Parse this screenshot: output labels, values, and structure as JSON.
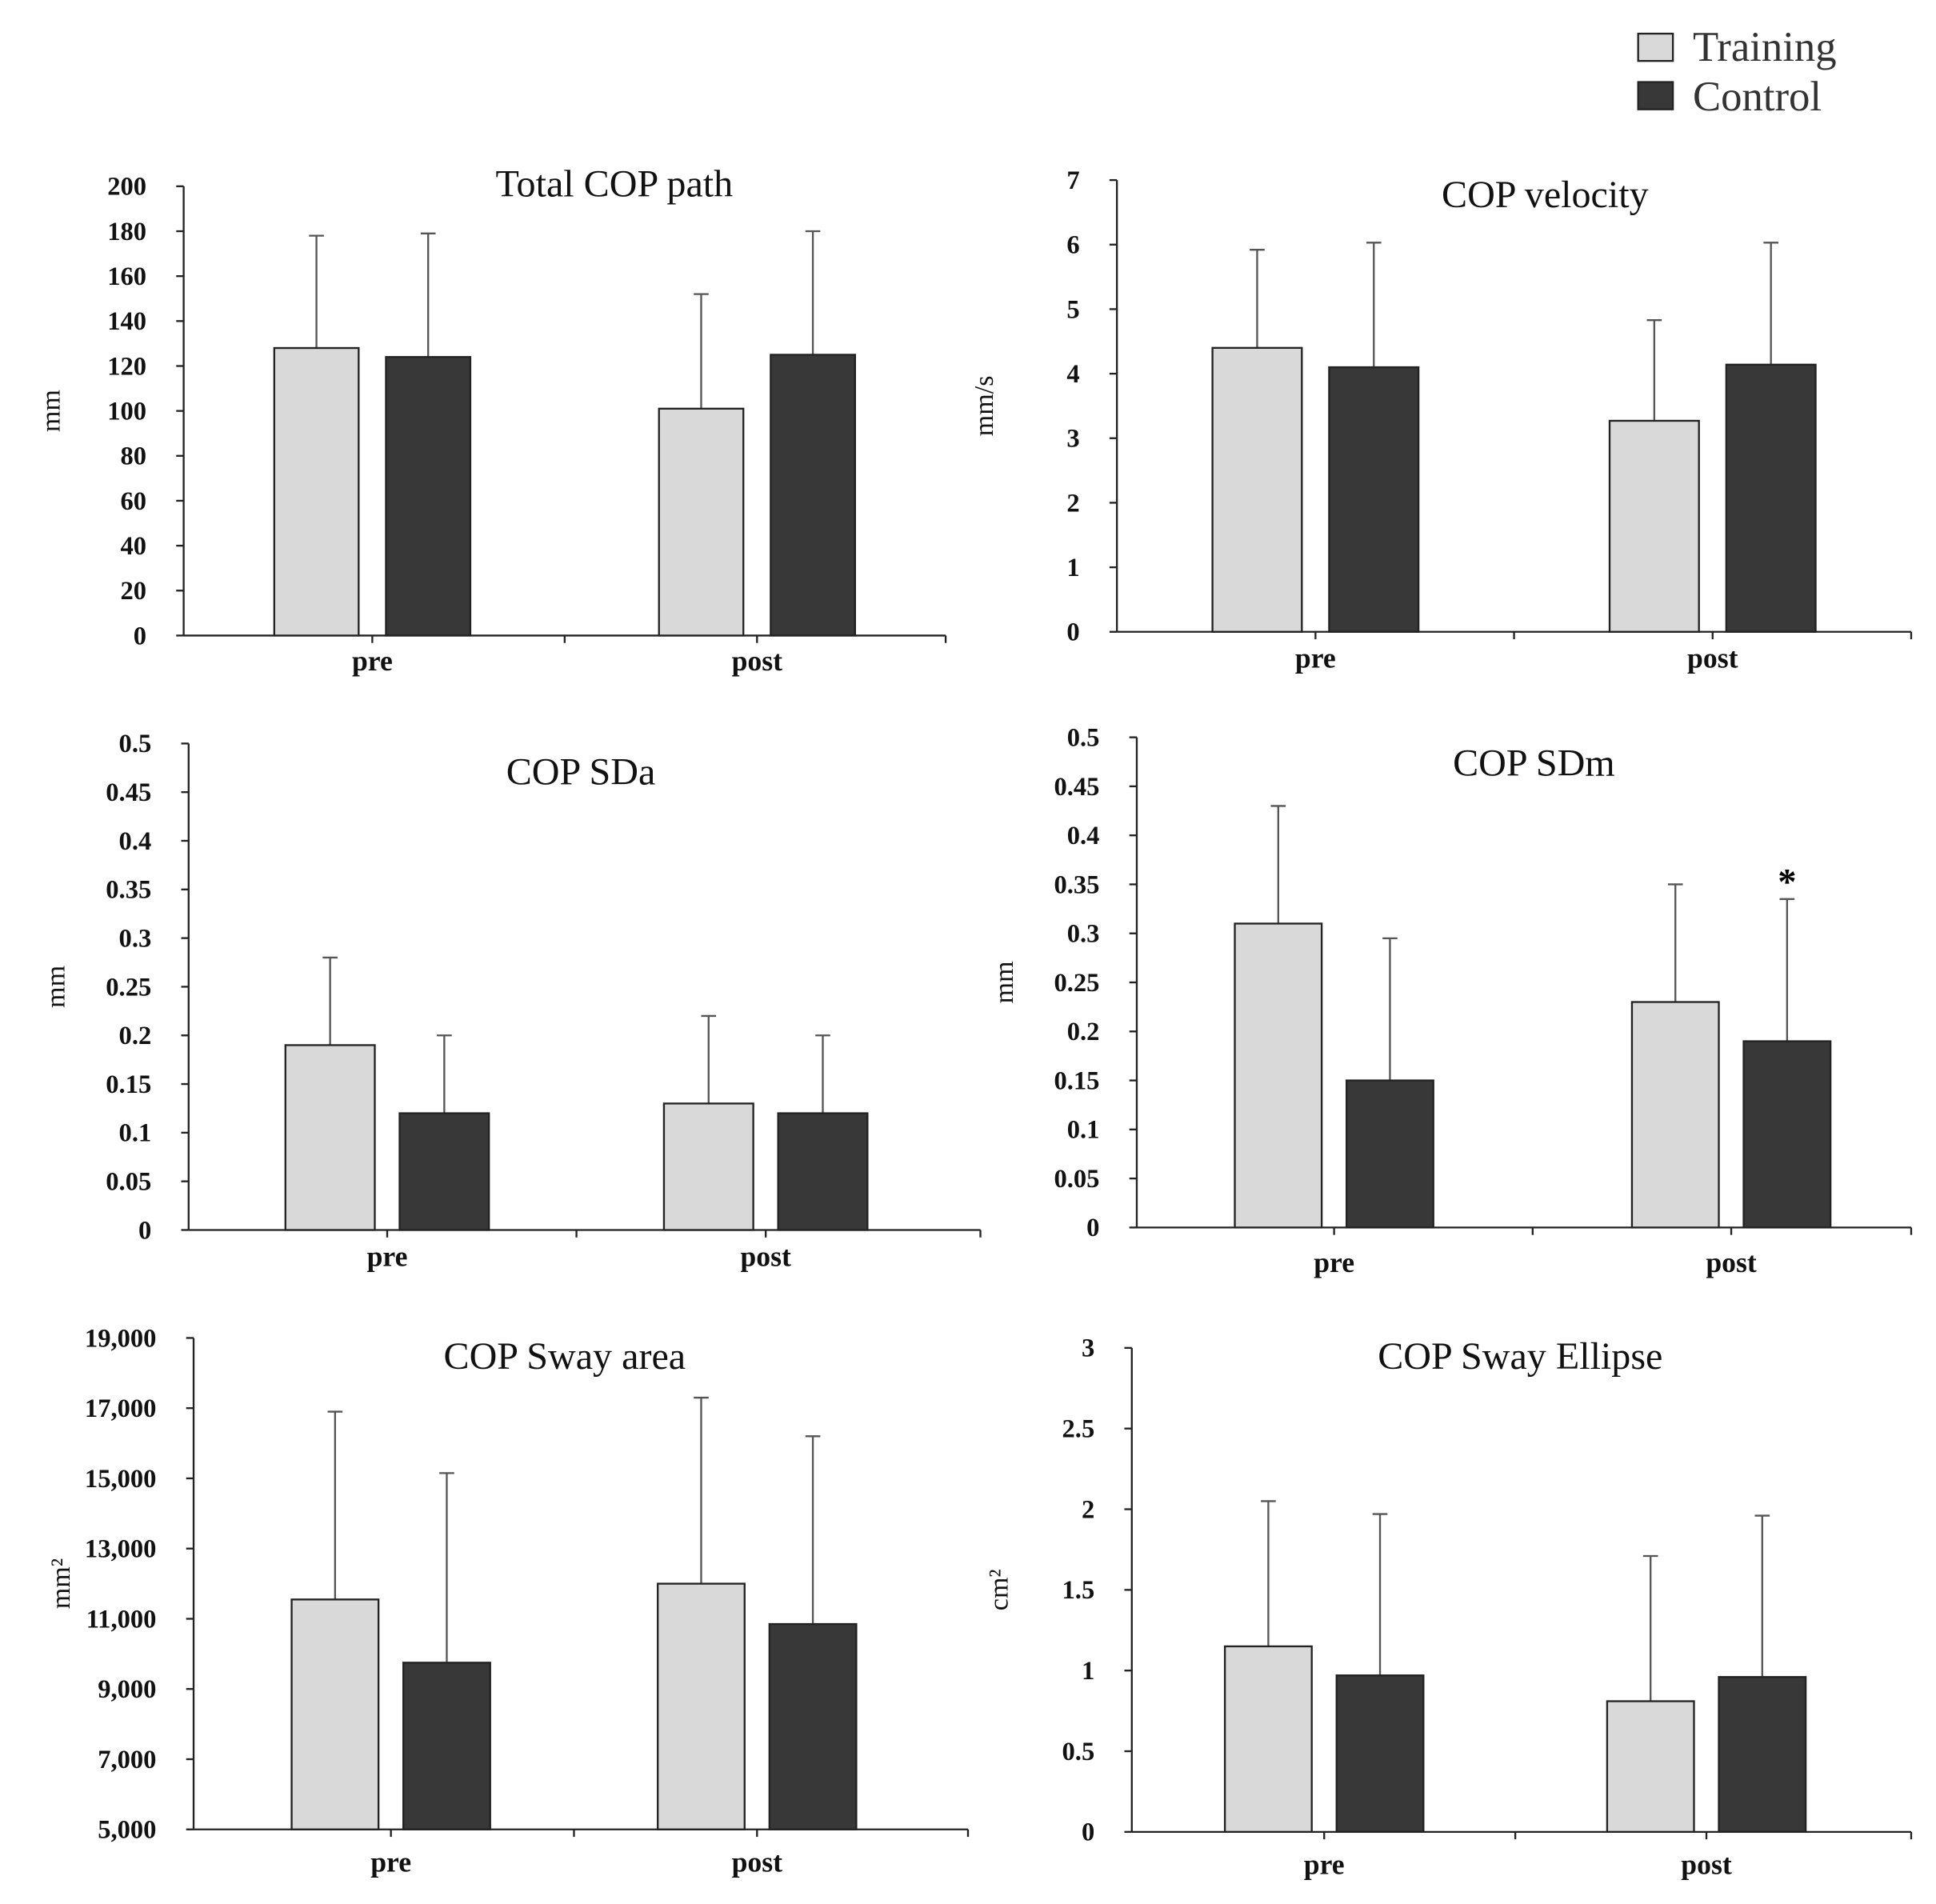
{
  "legend": [
    {
      "label": "Training",
      "color": "#d9d9d9"
    },
    {
      "label": "Control",
      "color": "#383838"
    }
  ],
  "chart_data": [
    {
      "type": "bar",
      "title": "Total COP path",
      "ylabel": "mm",
      "categories": [
        "pre",
        "post"
      ],
      "ylim": [
        0,
        200
      ],
      "ticks": [
        0,
        20,
        40,
        60,
        80,
        100,
        120,
        140,
        160,
        180,
        200
      ],
      "tick_labels": [
        "0",
        "20",
        "40",
        "60",
        "80",
        "100",
        "120",
        "140",
        "160",
        "180",
        "200"
      ],
      "series": [
        {
          "name": "Training",
          "values": [
            128,
            101
          ],
          "error_upper": [
            178,
            152
          ]
        },
        {
          "name": "Control",
          "values": [
            124,
            125
          ],
          "error_upper": [
            179,
            180
          ]
        }
      ]
    },
    {
      "type": "bar",
      "title": "COP velocity",
      "ylabel": "mm/s",
      "categories": [
        "pre",
        "post"
      ],
      "ylim": [
        0,
        7
      ],
      "ticks": [
        0,
        1,
        2,
        3,
        4,
        5,
        6,
        7
      ],
      "tick_labels": [
        "0",
        "1",
        "2",
        "3",
        "4",
        "5",
        "6",
        "7"
      ],
      "series": [
        {
          "name": "Training",
          "values": [
            4.4,
            3.27
          ],
          "error_upper": [
            5.92,
            4.83
          ]
        },
        {
          "name": "Control",
          "values": [
            4.1,
            4.14
          ],
          "error_upper": [
            6.03,
            6.03
          ]
        }
      ]
    },
    {
      "type": "bar",
      "title": "COP SDa",
      "ylabel": "mm",
      "categories": [
        "pre",
        "post"
      ],
      "ylim": [
        0,
        0.5
      ],
      "ticks": [
        0,
        0.05,
        0.1,
        0.15,
        0.2,
        0.25,
        0.3,
        0.35,
        0.4,
        0.45,
        0.5
      ],
      "tick_labels": [
        "0",
        "0.05",
        "0.1",
        "0.15",
        "0.2",
        "0.25",
        "0.3",
        "0.35",
        "0.4",
        "0.45",
        "0.5"
      ],
      "series": [
        {
          "name": "Training",
          "values": [
            0.19,
            0.13
          ],
          "error_upper": [
            0.28,
            0.22
          ]
        },
        {
          "name": "Control",
          "values": [
            0.12,
            0.12
          ],
          "error_upper": [
            0.2,
            0.2
          ]
        }
      ]
    },
    {
      "type": "bar",
      "title": "COP SDm",
      "ylabel": "mm",
      "categories": [
        "pre",
        "post"
      ],
      "ylim": [
        0,
        0.5
      ],
      "ticks": [
        0,
        0.05,
        0.1,
        0.15,
        0.2,
        0.25,
        0.3,
        0.35,
        0.4,
        0.45,
        0.5
      ],
      "tick_labels": [
        "0",
        "0.05",
        "0.1",
        "0.15",
        "0.2",
        "0.25",
        "0.3",
        "0.35",
        "0.4",
        "0.45",
        "0.5"
      ],
      "series": [
        {
          "name": "Training",
          "values": [
            0.31,
            0.23
          ],
          "error_upper": [
            0.43,
            0.35
          ]
        },
        {
          "name": "Control",
          "values": [
            0.15,
            0.19
          ],
          "error_upper": [
            0.295,
            0.335
          ]
        }
      ],
      "annotation": {
        "text": "*",
        "category": "post",
        "series": "Control"
      }
    },
    {
      "type": "bar",
      "title": "COP Sway area",
      "ylabel": "mm²",
      "categories": [
        "pre",
        "post"
      ],
      "ylim": [
        5000,
        19000
      ],
      "ticks": [
        5000,
        7000,
        9000,
        11000,
        13000,
        15000,
        17000,
        19000
      ],
      "tick_labels": [
        "5,000",
        "7,000",
        "9,000",
        "11,000",
        "13,000",
        "15,000",
        "17,000",
        "19,000"
      ],
      "series": [
        {
          "name": "Training",
          "values": [
            11550,
            12000
          ],
          "error_upper": [
            16900,
            17300
          ]
        },
        {
          "name": "Control",
          "values": [
            9750,
            10850
          ],
          "error_upper": [
            15150,
            16200
          ]
        }
      ]
    },
    {
      "type": "bar",
      "title": "COP Sway Ellipse",
      "ylabel": "cm²",
      "categories": [
        "pre",
        "post"
      ],
      "ylim": [
        0,
        3
      ],
      "ticks": [
        0,
        0.5,
        1,
        1.5,
        2,
        2.5,
        3
      ],
      "tick_labels": [
        "0",
        "0.5",
        "1",
        "1.5",
        "2",
        "2.5",
        "3"
      ],
      "series": [
        {
          "name": "Training",
          "values": [
            1.15,
            0.81
          ],
          "error_upper": [
            2.05,
            1.71
          ]
        },
        {
          "name": "Control",
          "values": [
            0.97,
            0.96
          ],
          "error_upper": [
            1.97,
            1.96
          ]
        }
      ]
    }
  ]
}
